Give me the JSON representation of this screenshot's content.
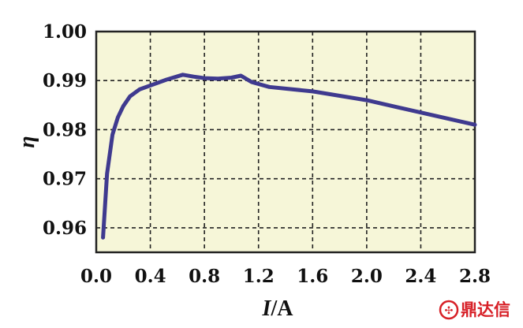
{
  "chart_data": {
    "type": "line",
    "xlabel_var": "I",
    "xlabel_unit": "/A",
    "ylabel": "η",
    "xlim": [
      0.0,
      2.8
    ],
    "ylim": [
      0.955,
      1.0
    ],
    "x_ticks": [
      0.0,
      0.4,
      0.8,
      1.2,
      1.6,
      2.0,
      2.4,
      2.8
    ],
    "x_tick_labels": [
      "0.0",
      "0.4",
      "0.8",
      "1.2",
      "1.6",
      "2.0",
      "2.4",
      "2.8"
    ],
    "y_ticks": [
      0.96,
      0.97,
      0.98,
      0.99,
      1.0
    ],
    "y_tick_labels": [
      "0.96",
      "0.97",
      "0.98",
      "0.99",
      "1.00"
    ],
    "grid": true,
    "plot_background": "#f6f6d8",
    "line_color": "#3f3a8f",
    "series": [
      {
        "x": [
          0.05,
          0.08,
          0.12,
          0.16,
          0.2,
          0.25,
          0.32,
          0.42,
          0.52,
          0.64,
          0.72,
          0.8,
          0.9,
          1.0,
          1.07,
          1.15,
          1.28,
          1.6,
          2.0,
          2.4,
          2.8
        ],
        "y": [
          0.958,
          0.971,
          0.979,
          0.9825,
          0.9848,
          0.9868,
          0.9882,
          0.9892,
          0.9902,
          0.9912,
          0.9908,
          0.9905,
          0.9904,
          0.9906,
          0.991,
          0.9897,
          0.9887,
          0.9878,
          0.986,
          0.9835,
          0.981
        ]
      }
    ]
  },
  "watermark": {
    "text": "鼎达信",
    "color": "#d71f26"
  }
}
